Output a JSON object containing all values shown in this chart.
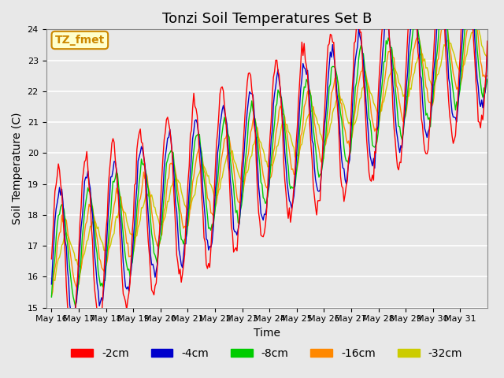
{
  "title": "Tonzi Soil Temperatures Set B",
  "xlabel": "Time",
  "ylabel": "Soil Temperature (C)",
  "ylim": [
    15.0,
    24.0
  ],
  "yticks": [
    15.0,
    16.0,
    17.0,
    18.0,
    19.0,
    20.0,
    21.0,
    22.0,
    23.0,
    24.0
  ],
  "legend_labels": [
    "-2cm",
    "-4cm",
    "-8cm",
    "-16cm",
    "-32cm"
  ],
  "legend_colors": [
    "#ff0000",
    "#0000cc",
    "#00cc00",
    "#ff8800",
    "#cccc00"
  ],
  "annotation_text": "TZ_fmet",
  "annotation_color": "#cc8800",
  "annotation_bg": "#ffffcc",
  "bg_color": "#e8e8e8",
  "grid_color": "#ffffff",
  "xtick_labels": [
    "May 16",
    "May 17",
    "May 18",
    "May 19",
    "May 20",
    "May 21",
    "May 22",
    "May 23",
    "May 24",
    "May 25",
    "May 26",
    "May 27",
    "May 28",
    "May 29",
    "May 30",
    "May 31"
  ],
  "title_fontsize": 13,
  "label_fontsize": 10,
  "tick_fontsize": 8,
  "legend_fontsize": 10
}
